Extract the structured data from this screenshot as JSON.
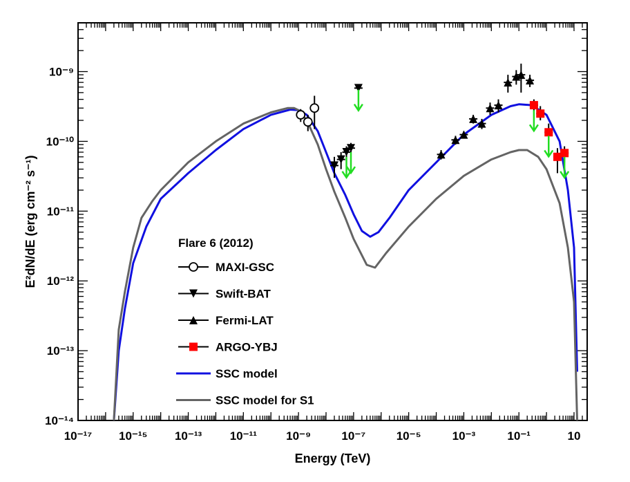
{
  "chart_data": {
    "type": "scatter",
    "title": "",
    "xlabel": "Energy (TeV)",
    "ylabel": "E²dN/dE (erg cm⁻² s⁻¹)",
    "xscale": "log",
    "yscale": "log",
    "xlim": [
      1e-17,
      30
    ],
    "ylim": [
      1e-14,
      5e-09
    ],
    "x_tick_labels": [
      "10⁻¹⁷",
      "10⁻¹⁵",
      "10⁻¹³",
      "10⁻¹¹",
      "10⁻⁹",
      "10⁻⁷",
      "10⁻⁵",
      "10⁻³",
      "10⁻¹",
      "10"
    ],
    "y_tick_labels": [
      "10⁻¹⁴",
      "10⁻¹³",
      "10⁻¹²",
      "10⁻¹¹",
      "10⁻¹⁰",
      "10⁻⁹"
    ],
    "legend_title": "Flare 6 (2012)",
    "legend_position": "lower-left",
    "series": [
      {
        "name": "MAXI-GSC",
        "kind": "points",
        "marker": "open-circle",
        "color": "#000000",
        "points": [
          {
            "x": 1.2e-09,
            "y": 2.4e-10,
            "lo": 1.9e-10,
            "hi": 2.9e-10
          },
          {
            "x": 2.2e-09,
            "y": 1.9e-10,
            "lo": 1.4e-10,
            "hi": 2.4e-10
          },
          {
            "x": 3.8e-09,
            "y": 3e-10,
            "lo": 1.5e-10,
            "hi": 4.5e-10
          }
        ]
      },
      {
        "name": "Swift-BAT",
        "kind": "points",
        "marker": "down-triangle",
        "color": "#000000",
        "points": [
          {
            "x": 2e-08,
            "y": 4.5e-11,
            "lo": 3e-11,
            "hi": 6e-11
          },
          {
            "x": 3.5e-08,
            "y": 5.5e-11,
            "lo": 4e-11,
            "hi": 7e-11
          },
          {
            "x": 5.5e-08,
            "y": 7e-11,
            "lo": 5.5e-11,
            "hi": 8.5e-11
          },
          {
            "x": 8e-08,
            "y": 8e-11,
            "lo": 6.5e-11,
            "hi": 9.5e-11
          },
          {
            "x": 1.5e-07,
            "y": 5.8e-10,
            "lo": 5.5e-10,
            "hi": 6.1e-10
          }
        ]
      },
      {
        "name": "Fermi-LAT",
        "kind": "points",
        "marker": "up-triangle",
        "color": "#000000",
        "points": [
          {
            "x": 0.00015,
            "y": 6.5e-11,
            "lo": 5.5e-11,
            "hi": 7.5e-11
          },
          {
            "x": 0.0005,
            "y": 1.05e-10,
            "lo": 9e-11,
            "hi": 1.2e-10
          },
          {
            "x": 0.001,
            "y": 1.25e-10,
            "lo": 1.1e-10,
            "hi": 1.4e-10
          },
          {
            "x": 0.0022,
            "y": 2.1e-10,
            "lo": 1.8e-10,
            "hi": 2.4e-10
          },
          {
            "x": 0.0045,
            "y": 1.8e-10,
            "lo": 1.5e-10,
            "hi": 2.1e-10
          },
          {
            "x": 0.009,
            "y": 3e-10,
            "lo": 2.4e-10,
            "hi": 3.6e-10
          },
          {
            "x": 0.018,
            "y": 3.3e-10,
            "lo": 2.6e-10,
            "hi": 4e-10
          },
          {
            "x": 0.04,
            "y": 7e-10,
            "lo": 5e-10,
            "hi": 9e-10
          },
          {
            "x": 0.08,
            "y": 8.5e-10,
            "lo": 6.5e-10,
            "hi": 1.05e-09
          },
          {
            "x": 0.12,
            "y": 9e-10,
            "lo": 5e-10,
            "hi": 1.3e-09
          },
          {
            "x": 0.25,
            "y": 7.5e-10,
            "lo": 6e-10,
            "hi": 9e-10
          }
        ]
      },
      {
        "name": "ARGO-YBJ",
        "kind": "points",
        "marker": "square",
        "color": "#ff0000",
        "points": [
          {
            "x": 0.35,
            "y": 3.3e-10,
            "lo": 2.6e-10,
            "hi": 4e-10
          },
          {
            "x": 0.6,
            "y": 2.5e-10,
            "lo": 2e-10,
            "hi": 3.2e-10
          },
          {
            "x": 1.2,
            "y": 1.35e-10,
            "lo": 1e-10,
            "hi": 1.8e-10
          },
          {
            "x": 2.5,
            "y": 6e-11,
            "lo": 3.5e-11,
            "hi": 8e-11
          },
          {
            "x": 4.5,
            "y": 6.8e-11,
            "lo": 5e-11,
            "hi": 8.5e-11
          }
        ]
      },
      {
        "name": "SSC model",
        "kind": "line",
        "color": "#1010e0",
        "points": [
          [
            2e-16,
            1e-14
          ],
          [
            3e-16,
            1e-13
          ],
          [
            5e-16,
            4e-13
          ],
          [
            1e-15,
            1.8e-12
          ],
          [
            3e-15,
            6e-12
          ],
          [
            1e-14,
            1.5e-11
          ],
          [
            1e-13,
            3.5e-11
          ],
          [
            1e-12,
            7.5e-11
          ],
          [
            1e-11,
            1.5e-10
          ],
          [
            1e-10,
            2.4e-10
          ],
          [
            5e-10,
            2.85e-10
          ],
          [
            1e-09,
            2.8e-10
          ],
          [
            2e-09,
            2.4e-10
          ],
          [
            5e-09,
            1.4e-10
          ],
          [
            1e-08,
            7e-11
          ],
          [
            2e-08,
            3.5e-11
          ],
          [
            5e-08,
            1.7e-11
          ],
          [
            1e-07,
            9e-12
          ],
          [
            2e-07,
            5.2e-12
          ],
          [
            4e-07,
            4.3e-12
          ],
          [
            8e-07,
            5e-12
          ],
          [
            2e-06,
            8e-12
          ],
          [
            1e-05,
            2e-11
          ],
          [
            0.0001,
            5e-11
          ],
          [
            0.001,
            1.25e-10
          ],
          [
            0.01,
            2.4e-10
          ],
          [
            0.05,
            3.2e-10
          ],
          [
            0.1,
            3.4e-10
          ],
          [
            0.3,
            3.3e-10
          ],
          [
            1,
            2.4e-10
          ],
          [
            3,
            1e-10
          ],
          [
            6,
            2e-11
          ],
          [
            10,
            3e-12
          ],
          [
            13,
            5e-14
          ]
        ]
      },
      {
        "name": "SSC model for S1",
        "kind": "line",
        "color": "#646464",
        "points": [
          [
            2e-16,
            1e-14
          ],
          [
            3e-16,
            2e-13
          ],
          [
            5e-16,
            7e-13
          ],
          [
            1e-15,
            3e-12
          ],
          [
            2e-15,
            8e-12
          ],
          [
            5e-15,
            1.4e-11
          ],
          [
            1e-14,
            2e-11
          ],
          [
            1e-13,
            5e-11
          ],
          [
            1e-12,
            1e-10
          ],
          [
            1e-11,
            1.8e-10
          ],
          [
            1e-10,
            2.6e-10
          ],
          [
            4e-10,
            3e-10
          ],
          [
            7e-10,
            3e-10
          ],
          [
            1e-09,
            2.8e-10
          ],
          [
            2e-09,
            2e-10
          ],
          [
            5e-09,
            9e-11
          ],
          [
            1e-08,
            4e-11
          ],
          [
            2e-08,
            1.9e-11
          ],
          [
            5e-08,
            8e-12
          ],
          [
            1e-07,
            4e-12
          ],
          [
            3e-07,
            1.7e-12
          ],
          [
            6e-07,
            1.55e-12
          ],
          [
            1.5e-06,
            2.5e-12
          ],
          [
            1e-05,
            6e-12
          ],
          [
            0.0001,
            1.5e-11
          ],
          [
            0.001,
            3.2e-11
          ],
          [
            0.01,
            5.5e-11
          ],
          [
            0.05,
            7e-11
          ],
          [
            0.1,
            7.5e-11
          ],
          [
            0.2,
            7.5e-11
          ],
          [
            0.5,
            6e-11
          ],
          [
            1,
            4e-11
          ],
          [
            3,
            1.3e-11
          ],
          [
            6,
            3e-12
          ],
          [
            10,
            5e-13
          ],
          [
            13,
            1e-14
          ]
        ]
      }
    ],
    "upper_limits": {
      "color": "#22dd22",
      "points": [
        {
          "x": 1.5e-07,
          "y": 5.5e-10
        },
        {
          "x": 5.5e-08,
          "y": 6e-11
        },
        {
          "x": 8e-08,
          "y": 7e-11
        },
        {
          "x": 0.35,
          "y": 2.8e-10
        },
        {
          "x": 1.2,
          "y": 1.2e-10
        },
        {
          "x": 4.5,
          "y": 6e-11
        }
      ]
    }
  }
}
